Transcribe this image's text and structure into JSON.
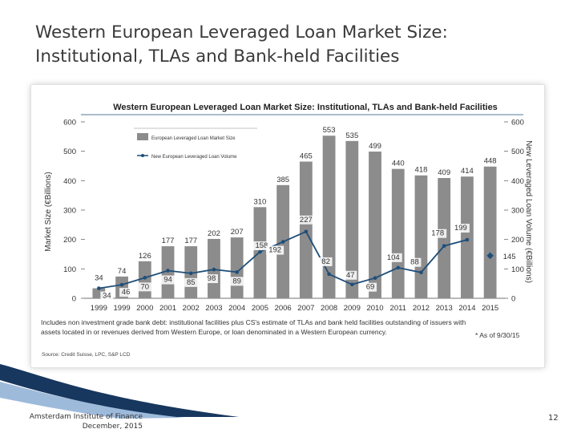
{
  "slide": {
    "title_line1": "Western European Leveraged Loan Market Size:",
    "title_line2": "Institutional, TLAs and Bank-held Facilities",
    "footer_line1": "Amsterdam Institute of Finance",
    "footer_line2": "December, 2015",
    "page_number": "12"
  },
  "chart_data": {
    "type": "bar",
    "title": "Western European Leveraged Loan Market Size: Institutional, TLAs and Bank-held Facilities",
    "categories": [
      "1999",
      "1999",
      "2000",
      "2001",
      "2002",
      "2003",
      "2004",
      "2005",
      "2006",
      "2007",
      "2008",
      "2009",
      "2010",
      "2011",
      "2012",
      "2013",
      "2014",
      "2015"
    ],
    "ylabel": "Market Size (€Billions)",
    "y2label": "New Leveraged Loan Volume (€Billions)",
    "ylim": [
      0,
      600
    ],
    "y2lim": [
      0,
      600
    ],
    "yticks": [
      "0",
      "100",
      "200",
      "300",
      "400",
      "500",
      "600"
    ],
    "y2ticks": [
      "0",
      "100",
      "200",
      "300",
      "400",
      "500",
      "600"
    ],
    "series": [
      {
        "name": "European Leveraged Loan Market Size",
        "kind": "bar",
        "color": "#8c8c8c",
        "values": [
          34,
          74,
          126,
          177,
          177,
          202,
          207,
          310,
          385,
          465,
          553,
          535,
          499,
          440,
          418,
          409,
          414,
          448
        ],
        "labels": [
          "34",
          "74",
          "126",
          "177",
          "177",
          "202",
          "207",
          "310",
          "385",
          "465",
          "553",
          "535",
          "499",
          "440",
          "418",
          "409",
          "414",
          "448"
        ]
      },
      {
        "name": "New European Leveraged Loan Volume",
        "kind": "line",
        "color": "#1f4e79",
        "values": [
          34,
          46,
          70,
          94,
          85,
          98,
          89,
          158,
          192,
          227,
          82,
          47,
          69,
          104,
          88,
          178,
          199,
          145
        ],
        "labels": [
          "34",
          "46",
          "70",
          "94",
          "85",
          "98",
          "89",
          "158",
          "192",
          "227",
          "82",
          "47",
          "69",
          "104",
          "88",
          "178",
          "199",
          "145"
        ]
      }
    ],
    "legend_position": "top-left",
    "note": "Includes non investment grade bank debt: institutional facilities plus CS's estimate of TLAs and bank held facilities outstanding of issuers with assets located in or revenues derived from Western Europe, or loan denominated in a Western European currency.",
    "footnote": "* As of 9/30/15",
    "source": "Source: Credit Suisse, LPC, S&P LCD"
  },
  "colors": {
    "bar": "#8c8c8c",
    "line": "#1f4e79",
    "title_text": "#3a3a3a",
    "swoosh": "#17375e"
  }
}
